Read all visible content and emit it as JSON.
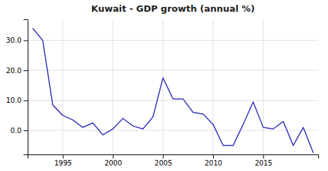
{
  "chart_data": {
    "type": "line",
    "title": "Kuwait - GDP growth (annual %)",
    "x": [
      1992,
      1993,
      1994,
      1995,
      1996,
      1997,
      1998,
      1999,
      2000,
      2001,
      2002,
      2003,
      2004,
      2005,
      2006,
      2007,
      2008,
      2009,
      2010,
      2011,
      2012,
      2013,
      2014,
      2015,
      2016,
      2017,
      2018,
      2019,
      2020
    ],
    "values": [
      34.0,
      30.0,
      8.5,
      5.0,
      3.5,
      1.0,
      2.5,
      -1.5,
      0.5,
      4.0,
      1.5,
      0.5,
      4.5,
      17.5,
      10.5,
      10.5,
      6.0,
      5.5,
      2.0,
      -5.0,
      -5.0,
      2.0,
      9.5,
      1.0,
      0.5,
      3.0,
      -5.0,
      1.0,
      -7.5
    ],
    "color": "#3333bb",
    "xlim": [
      1991.5,
      2020.5
    ],
    "xticks": [
      1995,
      2000,
      2005,
      2010,
      2015
    ],
    "ylim": [
      -8,
      37
    ],
    "yticks": [
      {
        "value": 0,
        "label": "0.0"
      },
      {
        "value": 10,
        "label": "10.0"
      },
      {
        "value": 20,
        "label": "20.0"
      },
      {
        "value": 30,
        "label": "30.0"
      }
    ],
    "grid": true
  }
}
